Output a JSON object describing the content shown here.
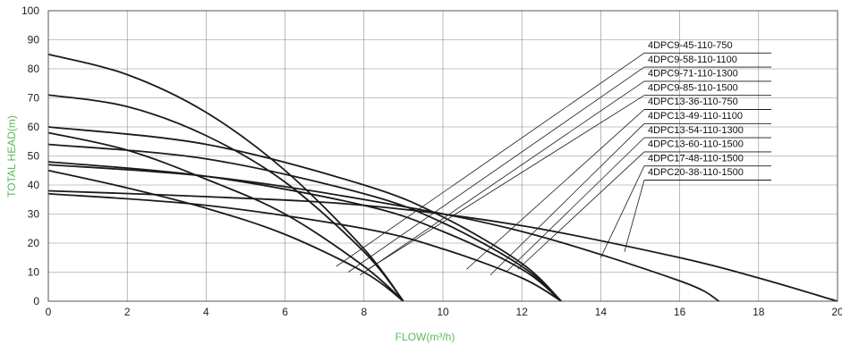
{
  "chart_data": {
    "type": "line",
    "xlabel": "FLOW(m³/h)",
    "ylabel": "TOTAL HEAD(m)",
    "xlim": [
      0,
      20
    ],
    "ylim": [
      0,
      100
    ],
    "x_ticks": [
      "0",
      "2",
      "4",
      "6",
      "8",
      "10",
      "12",
      "14",
      "16",
      "18",
      "20"
    ],
    "y_ticks": [
      "0",
      "10",
      "20",
      "30",
      "40",
      "50",
      "60",
      "70",
      "80",
      "90",
      "100"
    ],
    "grid": true,
    "legend_position": "top-right",
    "label_color": "#5cb85c",
    "line_color": "#1a1a1a",
    "series": [
      {
        "name": "4DPC9-45-110-750",
        "x": [
          0,
          2,
          4,
          6,
          8,
          9
        ],
        "y": [
          45,
          39,
          32,
          23,
          10,
          0
        ]
      },
      {
        "name": "4DPC9-58-110-1100",
        "x": [
          0,
          2,
          4,
          6,
          8,
          9
        ],
        "y": [
          58,
          52,
          42,
          30,
          12,
          0
        ]
      },
      {
        "name": "4DPC9-71-110-1300",
        "x": [
          0,
          2,
          4,
          6,
          8,
          9
        ],
        "y": [
          71,
          67,
          57,
          41,
          17,
          0
        ]
      },
      {
        "name": "4DPC9-85-110-1500",
        "x": [
          0,
          2,
          4,
          6,
          8,
          9
        ],
        "y": [
          85,
          78,
          65,
          45,
          18,
          0
        ]
      },
      {
        "name": "4DPC13-36-110-750",
        "x": [
          0,
          4,
          8,
          10,
          12,
          13
        ],
        "y": [
          37,
          33,
          25,
          18,
          8,
          0
        ]
      },
      {
        "name": "4DPC13-49-110-1100",
        "x": [
          0,
          4,
          8,
          10,
          12,
          13
        ],
        "y": [
          48,
          43,
          33,
          24,
          11,
          0
        ]
      },
      {
        "name": "4DPC13-54-110-1300",
        "x": [
          0,
          4,
          8,
          10,
          12,
          13
        ],
        "y": [
          54,
          49,
          37,
          27,
          12,
          0
        ]
      },
      {
        "name": "4DPC13-60-110-1500",
        "x": [
          0,
          4,
          8,
          10,
          12,
          13
        ],
        "y": [
          60,
          54,
          40,
          29,
          13,
          0
        ]
      },
      {
        "name": "4DPC17-48-110-1500",
        "x": [
          0,
          4,
          8,
          12,
          16,
          17
        ],
        "y": [
          47,
          43,
          35,
          24,
          7,
          0
        ]
      },
      {
        "name": "4DPC20-38-110-1500",
        "x": [
          0,
          4,
          8,
          12,
          16,
          18,
          20
        ],
        "y": [
          38,
          36,
          33,
          26,
          15,
          8,
          0
        ]
      }
    ],
    "legend_pointers": [
      {
        "x": 7.3,
        "y": 12
      },
      {
        "x": 7.6,
        "y": 10
      },
      {
        "x": 7.9,
        "y": 9
      },
      {
        "x": 8.1,
        "y": 11
      },
      {
        "x": 10.6,
        "y": 11
      },
      {
        "x": 11.2,
        "y": 9
      },
      {
        "x": 11.6,
        "y": 10
      },
      {
        "x": 11.9,
        "y": 11
      },
      {
        "x": 14.0,
        "y": 15
      },
      {
        "x": 14.6,
        "y": 17
      }
    ]
  }
}
